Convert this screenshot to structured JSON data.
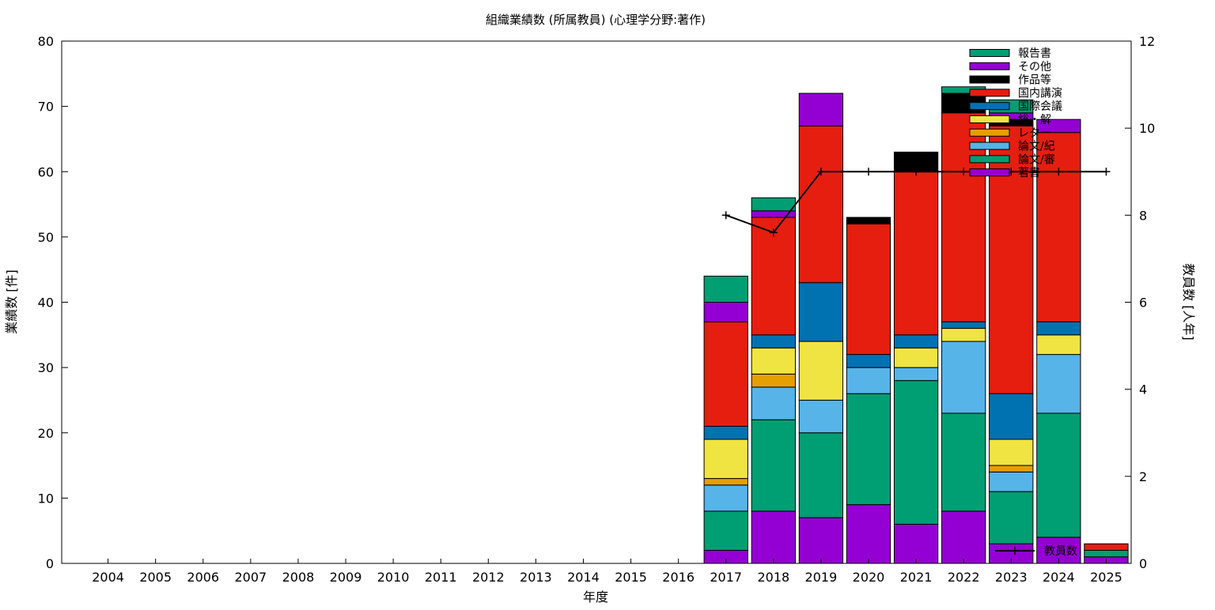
{
  "chart_data": {
    "type": "bar",
    "stacked": true,
    "title": "組織業績数 (所属教員) (心理学分野:著作)",
    "xlabel": "年度",
    "ylabel": "業績数 [件]",
    "y2label": "教員数 [人年]",
    "categories": [
      "2004",
      "2005",
      "2006",
      "2007",
      "2008",
      "2009",
      "2010",
      "2011",
      "2012",
      "2013",
      "2014",
      "2015",
      "2016",
      "2017",
      "2018",
      "2019",
      "2020",
      "2021",
      "2022",
      "2023",
      "2024",
      "2025"
    ],
    "ylim": [
      0,
      80
    ],
    "y2lim": [
      0,
      12
    ],
    "yticks": [
      0,
      10,
      20,
      30,
      40,
      50,
      60,
      70,
      80
    ],
    "y2ticks": [
      0,
      2,
      4,
      6,
      8,
      10,
      12
    ],
    "grid": false,
    "legend_position": "top-right",
    "series": [
      {
        "name": "著書",
        "color": "#9400d3",
        "values": [
          0,
          0,
          0,
          0,
          0,
          0,
          0,
          0,
          0,
          0,
          0,
          0,
          0,
          2,
          8,
          7,
          9,
          6,
          8,
          3,
          4,
          1
        ]
      },
      {
        "name": "論文/審",
        "color": "#009e73",
        "values": [
          0,
          0,
          0,
          0,
          0,
          0,
          0,
          0,
          0,
          0,
          0,
          0,
          0,
          6,
          14,
          13,
          17,
          22,
          15,
          8,
          19,
          1
        ]
      },
      {
        "name": "論文/紀",
        "color": "#56b4e9",
        "values": [
          0,
          0,
          0,
          0,
          0,
          0,
          0,
          0,
          0,
          0,
          0,
          0,
          0,
          4,
          5,
          5,
          4,
          2,
          11,
          3,
          9,
          0
        ]
      },
      {
        "name": "レター",
        "color": "#e69f00",
        "values": [
          0,
          0,
          0,
          0,
          0,
          0,
          0,
          0,
          0,
          0,
          0,
          0,
          0,
          1,
          2,
          0,
          0,
          0,
          0,
          1,
          0,
          0
        ]
      },
      {
        "name": "総・解",
        "color": "#f0e442",
        "values": [
          0,
          0,
          0,
          0,
          0,
          0,
          0,
          0,
          0,
          0,
          0,
          0,
          0,
          6,
          4,
          9,
          0,
          3,
          2,
          4,
          3,
          0
        ]
      },
      {
        "name": "国際会議",
        "color": "#0072b2",
        "values": [
          0,
          0,
          0,
          0,
          0,
          0,
          0,
          0,
          0,
          0,
          0,
          0,
          0,
          2,
          2,
          9,
          2,
          2,
          1,
          7,
          2,
          0
        ]
      },
      {
        "name": "国内講演",
        "color": "#e51e10",
        "values": [
          0,
          0,
          0,
          0,
          0,
          0,
          0,
          0,
          0,
          0,
          0,
          0,
          0,
          16,
          18,
          24,
          20,
          25,
          32,
          41,
          29,
          1
        ]
      },
      {
        "name": "作品等",
        "color": "#000000",
        "values": [
          0,
          0,
          0,
          0,
          0,
          0,
          0,
          0,
          0,
          0,
          0,
          0,
          0,
          0,
          0,
          0,
          1,
          3,
          3,
          1,
          0,
          0
        ]
      },
      {
        "name": "その他",
        "color": "#9400d3",
        "values": [
          0,
          0,
          0,
          0,
          0,
          0,
          0,
          0,
          0,
          0,
          0,
          0,
          0,
          3,
          1,
          5,
          0,
          0,
          0,
          1,
          2,
          0
        ]
      },
      {
        "name": "報告書",
        "color": "#009e73",
        "values": [
          0,
          0,
          0,
          0,
          0,
          0,
          0,
          0,
          0,
          0,
          0,
          0,
          0,
          4,
          2,
          0,
          0,
          0,
          1,
          2,
          0,
          0
        ]
      }
    ],
    "line_series": {
      "name": "教員数",
      "axis": "y2",
      "color": "#000000",
      "x": [
        "2017",
        "2018",
        "2019",
        "2020",
        "2021",
        "2022",
        "2023",
        "2024",
        "2025"
      ],
      "values": [
        8,
        7.6,
        9,
        9,
        9,
        9,
        9,
        9,
        9
      ]
    }
  }
}
